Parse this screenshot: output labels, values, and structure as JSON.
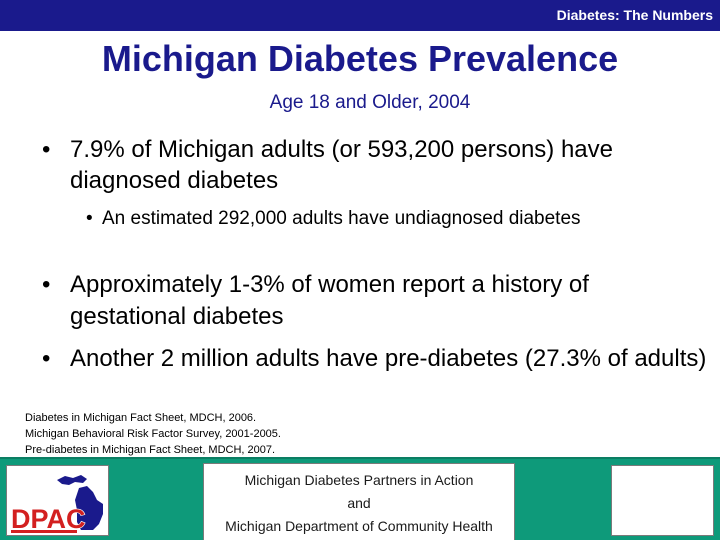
{
  "header": {
    "label": "Diabetes: The Numbers"
  },
  "slide": {
    "title": "Michigan Diabetes Prevalence",
    "subtitle": "Age 18 and Older, 2004",
    "bullets": [
      {
        "level": 1,
        "text": "7.9% of Michigan adults (or 593,200 persons) have diagnosed diabetes"
      },
      {
        "level": 2,
        "text": "An estimated 292,000 adults have undiagnosed diabetes"
      },
      {
        "level": 1,
        "text": "Approximately 1-3% of women report a history of gestational diabetes"
      },
      {
        "level": 1,
        "text": "Another 2 million adults have pre-diabetes (27.3% of adults)"
      }
    ],
    "sources": [
      "Diabetes in Michigan Fact Sheet, MDCH, 2006.",
      "Michigan Behavioral Risk Factor Survey, 2001-2005.",
      "Pre-diabetes in Michigan Fact Sheet, MDCH, 2007."
    ]
  },
  "footer": {
    "logo_text": "DPAC",
    "line1": "Michigan Diabetes Partners in Action",
    "line2": "and",
    "line3": "Michigan Department of Community Health"
  },
  "colors": {
    "header_bg": "#1a1a8c",
    "title": "#1a1a8c",
    "footer_bg": "#0e9a7a",
    "logo_red": "#d32020",
    "logo_blue": "#1a1a8c"
  },
  "icons": {
    "bullet": "bullet-dot",
    "logo": "dpac-michigan-logo"
  }
}
